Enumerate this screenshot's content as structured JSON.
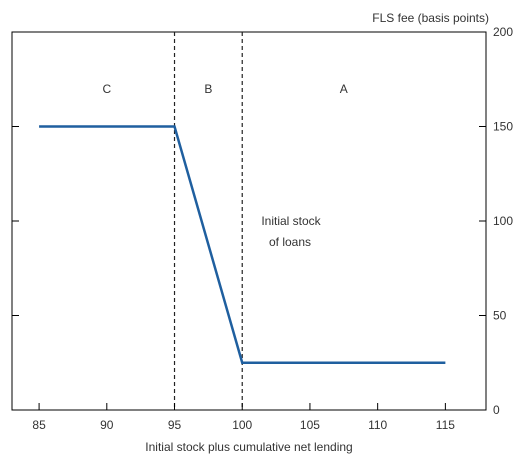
{
  "chart_data": {
    "type": "line",
    "title": "",
    "xlabel": "Initial stock plus cumulative net lending",
    "ylabel": "FLS fee (basis points)",
    "xlim": [
      83,
      118
    ],
    "ylim": [
      0,
      200
    ],
    "x_ticks": [
      85,
      90,
      95,
      100,
      105,
      110,
      115
    ],
    "y_ticks": [
      0,
      50,
      100,
      150,
      200
    ],
    "y_axis_side": "right",
    "grid": false,
    "legend": "none",
    "line_color": "#1f5f9f",
    "series": [
      {
        "x": [
          85,
          95,
          100,
          115
        ],
        "y": [
          150,
          150,
          25,
          25
        ]
      }
    ],
    "vlines": [
      95,
      100
    ],
    "regions": [
      {
        "label": "C",
        "x": 90
      },
      {
        "label": "B",
        "x": 97.5
      },
      {
        "label": "A",
        "x": 107.5
      }
    ],
    "annotation": [
      "Initial stock",
      "of loans"
    ]
  }
}
